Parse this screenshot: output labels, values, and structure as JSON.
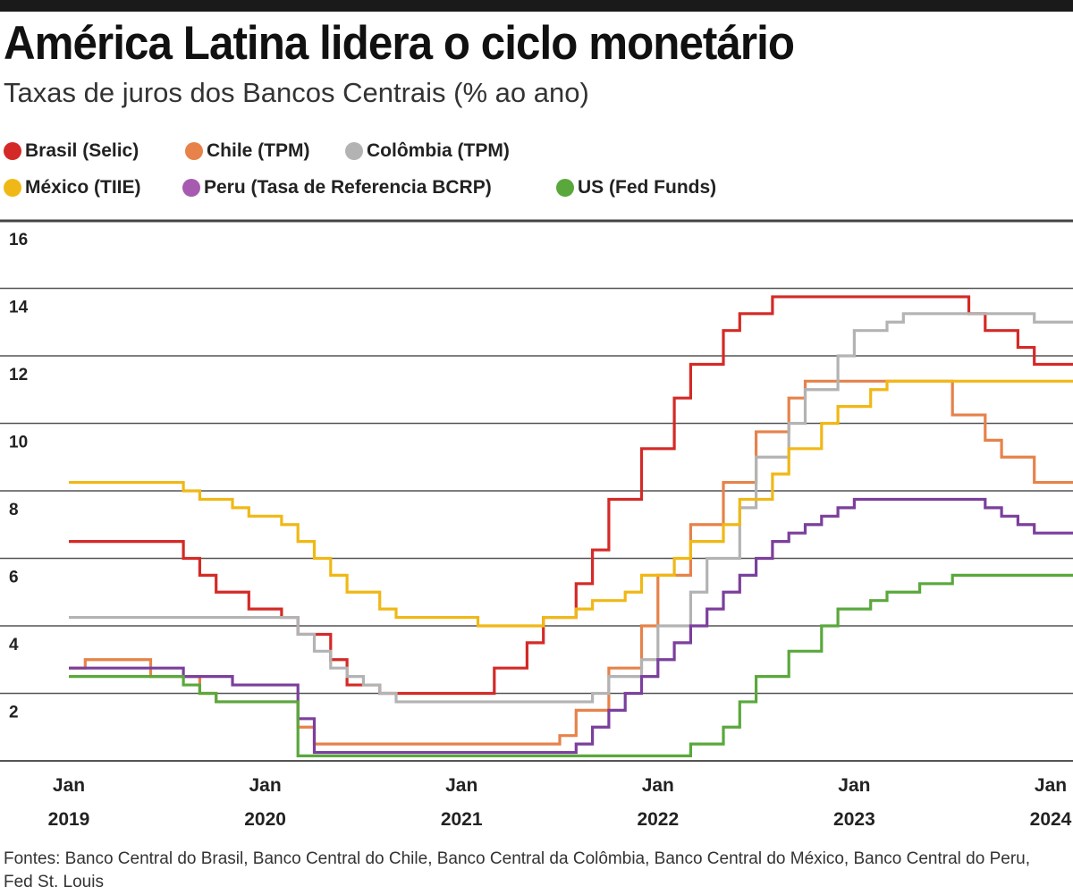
{
  "chart_data": {
    "type": "line",
    "step": true,
    "title": "América Latina lidera o ciclo monetário",
    "subtitle": "Taxas de juros dos Bancos Centrais (% ao ano)",
    "ylim": [
      0,
      16
    ],
    "yticks": [
      2,
      4,
      6,
      8,
      10,
      12,
      14,
      16
    ],
    "xlim": [
      "2019-01",
      "2024-02"
    ],
    "xticks": [
      {
        "date": "2019-01",
        "m": "Jan",
        "y": "2019"
      },
      {
        "date": "2020-01",
        "m": "Jan",
        "y": "2020"
      },
      {
        "date": "2021-01",
        "m": "Jan",
        "y": "2021"
      },
      {
        "date": "2022-01",
        "m": "Jan",
        "y": "2022"
      },
      {
        "date": "2023-01",
        "m": "Jan",
        "y": "2023"
      },
      {
        "date": "2024-01",
        "m": "Jan",
        "y": "2024"
      }
    ],
    "grid": true,
    "legend_placement": "top",
    "series": [
      {
        "name": "Brasil (Selic)",
        "color": "#d42a27",
        "points": [
          [
            "2019-01",
            6.5
          ],
          [
            "2019-08",
            6.0
          ],
          [
            "2019-09",
            5.5
          ],
          [
            "2019-10",
            5.0
          ],
          [
            "2019-12",
            4.5
          ],
          [
            "2020-02",
            4.25
          ],
          [
            "2020-03",
            3.75
          ],
          [
            "2020-05",
            3.0
          ],
          [
            "2020-06",
            2.25
          ],
          [
            "2020-08",
            2.0
          ],
          [
            "2021-03",
            2.75
          ],
          [
            "2021-05",
            3.5
          ],
          [
            "2021-06",
            4.25
          ],
          [
            "2021-08",
            5.25
          ],
          [
            "2021-09",
            6.25
          ],
          [
            "2021-10",
            7.75
          ],
          [
            "2021-12",
            9.25
          ],
          [
            "2022-02",
            10.75
          ],
          [
            "2022-03",
            11.75
          ],
          [
            "2022-05",
            12.75
          ],
          [
            "2022-06",
            13.25
          ],
          [
            "2022-08",
            13.75
          ],
          [
            "2023-08",
            13.25
          ],
          [
            "2023-09",
            12.75
          ],
          [
            "2023-11",
            12.25
          ],
          [
            "2023-12",
            11.75
          ]
        ]
      },
      {
        "name": "Chile (TPM)",
        "color": "#e6824a",
        "points": [
          [
            "2019-01",
            2.75
          ],
          [
            "2019-02",
            3.0
          ],
          [
            "2019-06",
            2.5
          ],
          [
            "2019-09",
            2.0
          ],
          [
            "2019-10",
            1.75
          ],
          [
            "2020-03",
            1.0
          ],
          [
            "2020-04",
            0.5
          ],
          [
            "2021-07",
            0.75
          ],
          [
            "2021-08",
            1.5
          ],
          [
            "2021-10",
            2.75
          ],
          [
            "2021-12",
            4.0
          ],
          [
            "2022-01",
            5.5
          ],
          [
            "2022-03",
            7.0
          ],
          [
            "2022-05",
            8.25
          ],
          [
            "2022-07",
            9.75
          ],
          [
            "2022-09",
            10.75
          ],
          [
            "2022-10",
            11.25
          ],
          [
            "2023-07",
            10.25
          ],
          [
            "2023-09",
            9.5
          ],
          [
            "2023-10",
            9.0
          ],
          [
            "2023-12",
            8.25
          ]
        ]
      },
      {
        "name": "Colômbia (TPM)",
        "color": "#b3b3b3",
        "points": [
          [
            "2019-01",
            4.25
          ],
          [
            "2020-03",
            3.75
          ],
          [
            "2020-04",
            3.25
          ],
          [
            "2020-05",
            2.75
          ],
          [
            "2020-06",
            2.5
          ],
          [
            "2020-07",
            2.25
          ],
          [
            "2020-08",
            2.0
          ],
          [
            "2020-09",
            1.75
          ],
          [
            "2021-09",
            2.0
          ],
          [
            "2021-10",
            2.5
          ],
          [
            "2021-12",
            3.0
          ],
          [
            "2022-01",
            4.0
          ],
          [
            "2022-03",
            5.0
          ],
          [
            "2022-04",
            6.0
          ],
          [
            "2022-06",
            7.5
          ],
          [
            "2022-07",
            9.0
          ],
          [
            "2022-09",
            10.0
          ],
          [
            "2022-10",
            11.0
          ],
          [
            "2022-12",
            12.0
          ],
          [
            "2023-01",
            12.75
          ],
          [
            "2023-03",
            13.0
          ],
          [
            "2023-04",
            13.25
          ],
          [
            "2023-12",
            13.0
          ]
        ]
      },
      {
        "name": "México (TIIE)",
        "color": "#f0b816",
        "points": [
          [
            "2019-01",
            8.25
          ],
          [
            "2019-08",
            8.0
          ],
          [
            "2019-09",
            7.75
          ],
          [
            "2019-11",
            7.5
          ],
          [
            "2019-12",
            7.25
          ],
          [
            "2020-02",
            7.0
          ],
          [
            "2020-03",
            6.5
          ],
          [
            "2020-04",
            6.0
          ],
          [
            "2020-05",
            5.5
          ],
          [
            "2020-06",
            5.0
          ],
          [
            "2020-08",
            4.5
          ],
          [
            "2020-09",
            4.25
          ],
          [
            "2021-02",
            4.0
          ],
          [
            "2021-06",
            4.25
          ],
          [
            "2021-08",
            4.5
          ],
          [
            "2021-09",
            4.75
          ],
          [
            "2021-11",
            5.0
          ],
          [
            "2021-12",
            5.5
          ],
          [
            "2022-02",
            6.0
          ],
          [
            "2022-03",
            6.5
          ],
          [
            "2022-05",
            7.0
          ],
          [
            "2022-06",
            7.75
          ],
          [
            "2022-08",
            8.5
          ],
          [
            "2022-09",
            9.25
          ],
          [
            "2022-11",
            10.0
          ],
          [
            "2022-12",
            10.5
          ],
          [
            "2023-02",
            11.0
          ],
          [
            "2023-03",
            11.25
          ]
        ]
      },
      {
        "name": "Peru (Tasa de Referencia BCRP)",
        "color": "#7b3f9c",
        "points": [
          [
            "2019-01",
            2.75
          ],
          [
            "2019-08",
            2.5
          ],
          [
            "2019-11",
            2.25
          ],
          [
            "2020-03",
            1.25
          ],
          [
            "2020-04",
            0.25
          ],
          [
            "2021-08",
            0.5
          ],
          [
            "2021-09",
            1.0
          ],
          [
            "2021-10",
            1.5
          ],
          [
            "2021-11",
            2.0
          ],
          [
            "2021-12",
            2.5
          ],
          [
            "2022-01",
            3.0
          ],
          [
            "2022-02",
            3.5
          ],
          [
            "2022-03",
            4.0
          ],
          [
            "2022-04",
            4.5
          ],
          [
            "2022-05",
            5.0
          ],
          [
            "2022-06",
            5.5
          ],
          [
            "2022-07",
            6.0
          ],
          [
            "2022-08",
            6.5
          ],
          [
            "2022-09",
            6.75
          ],
          [
            "2022-10",
            7.0
          ],
          [
            "2022-11",
            7.25
          ],
          [
            "2022-12",
            7.5
          ],
          [
            "2023-01",
            7.75
          ],
          [
            "2023-09",
            7.5
          ],
          [
            "2023-10",
            7.25
          ],
          [
            "2023-11",
            7.0
          ],
          [
            "2023-12",
            6.75
          ]
        ]
      },
      {
        "name": "US (Fed Funds)",
        "color": "#5aa83c",
        "points": [
          [
            "2019-01",
            2.5
          ],
          [
            "2019-08",
            2.25
          ],
          [
            "2019-09",
            2.0
          ],
          [
            "2019-10",
            1.75
          ],
          [
            "2020-03",
            0.15
          ],
          [
            "2022-03",
            0.5
          ],
          [
            "2022-05",
            1.0
          ],
          [
            "2022-06",
            1.75
          ],
          [
            "2022-07",
            2.5
          ],
          [
            "2022-09",
            3.25
          ],
          [
            "2022-11",
            4.0
          ],
          [
            "2022-12",
            4.5
          ],
          [
            "2023-02",
            4.75
          ],
          [
            "2023-03",
            5.0
          ],
          [
            "2023-05",
            5.25
          ],
          [
            "2023-07",
            5.5
          ]
        ]
      }
    ]
  },
  "footer": "Fontes: Banco Central do Brasil, Banco Central do Chile, Banco Central da Colômbia, Banco Central do México, Banco Central do Peru, Fed St. Louis"
}
